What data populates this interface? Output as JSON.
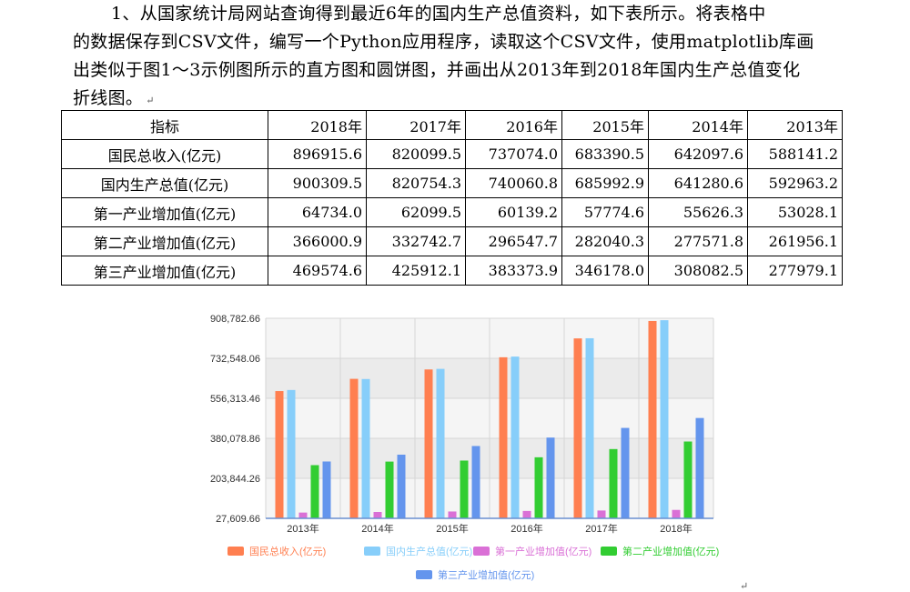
{
  "document": {
    "paragraph": {
      "line1": "1、从国家统计局网站查询得到最近6年的国内生产总值资料，如下表所示。将表格中",
      "line2": "的数据保存到CSV文件，编写一个Python应用程序，读取这个CSV文件，使用matplotlib库画",
      "line3": "出类似于图1～3示例图所示的直方图和圆饼图，并画出从2013年到2018年国内生产总值变化",
      "line4": "折线图。"
    },
    "para_mark": "↵"
  },
  "table": {
    "header": [
      "指标",
      "2018年",
      "2017年",
      "2016年",
      "2015年",
      "2014年",
      "2013年"
    ],
    "rows": [
      [
        "国民总收入(亿元)",
        "896915.6",
        "820099.5",
        "737074.0",
        "683390.5",
        "642097.6",
        "588141.2"
      ],
      [
        "国内生产总值(亿元)",
        "900309.5",
        "820754.3",
        "740060.8",
        "685992.9",
        "641280.6",
        "592963.2"
      ],
      [
        "第一产业增加值(亿元)",
        "64734.0",
        "62099.5",
        "60139.2",
        "57774.6",
        "55626.3",
        "53028.1"
      ],
      [
        "第二产业增加值(亿元)",
        "366000.9",
        "332742.7",
        "296547.7",
        "282040.3",
        "277571.8",
        "261956.1"
      ],
      [
        "第三产业增加值(亿元)",
        "469574.6",
        "425912.1",
        "383373.9",
        "346178.0",
        "308082.5",
        "277979.1"
      ]
    ]
  },
  "chart_data": {
    "type": "bar",
    "categories": [
      "2013年",
      "2014年",
      "2015年",
      "2016年",
      "2017年",
      "2018年"
    ],
    "y_ticks": [
      "27,609.66",
      "203,844.26",
      "380,078.86",
      "556,313.46",
      "732,548.06",
      "908,782.66"
    ],
    "ylim": [
      27609.66,
      908782.66
    ],
    "grid": true,
    "legend": "bottom",
    "series": [
      {
        "name": "国民总收入(亿元)",
        "color": "#ff7f50",
        "values": [
          588141.2,
          642097.6,
          683390.5,
          737074.0,
          820099.5,
          896915.6
        ]
      },
      {
        "name": "国内生产总值(亿元)",
        "color": "#87cefa",
        "values": [
          592963.2,
          641280.6,
          685992.9,
          740060.8,
          820754.3,
          900309.5
        ]
      },
      {
        "name": "第一产业增加值(亿元)",
        "color": "#da70d6",
        "values": [
          53028.1,
          55626.3,
          57774.6,
          60139.2,
          62099.5,
          64734.0
        ]
      },
      {
        "name": "第二产业增加值(亿元)",
        "color": "#32cd32",
        "values": [
          261956.1,
          277571.8,
          282040.3,
          296547.7,
          332742.7,
          366000.9
        ]
      },
      {
        "name": "第三产业增加值(亿元)",
        "color": "#6495ed",
        "values": [
          277979.1,
          308082.5,
          346178.0,
          383373.9,
          425912.1,
          469574.6
        ]
      }
    ]
  }
}
